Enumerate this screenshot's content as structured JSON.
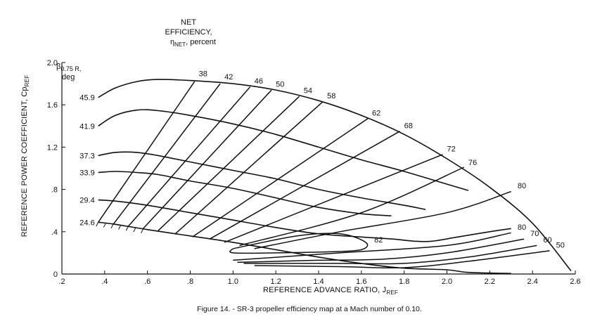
{
  "chart_data": {
    "type": "line",
    "xlabel": "REFERENCE ADVANCE RATIO, J",
    "xlabel_sub": "REF",
    "ylabel": "REFERENCE POWER COEFFICIENT, Cp",
    "ylabel_sub": "REF",
    "xlim": [
      0.2,
      2.6
    ],
    "ylim": [
      0,
      2.0
    ],
    "x_ticks": [
      {
        "v": 0.2,
        "label": ".2"
      },
      {
        "v": 0.4,
        "label": ".4"
      },
      {
        "v": 0.6,
        "label": ".6"
      },
      {
        "v": 0.8,
        "label": ".8"
      },
      {
        "v": 1.0,
        "label": "1.0"
      },
      {
        "v": 1.2,
        "label": "1.2"
      },
      {
        "v": 1.4,
        "label": "1.4"
      },
      {
        "v": 1.6,
        "label": "1.6"
      },
      {
        "v": 1.8,
        "label": "1.8"
      },
      {
        "v": 2.0,
        "label": "2.0"
      },
      {
        "v": 2.2,
        "label": "2.2"
      },
      {
        "v": 2.4,
        "label": "2.4"
      },
      {
        "v": 2.6,
        "label": "2.6"
      }
    ],
    "y_ticks": [
      {
        "v": 0,
        "label": "0"
      },
      {
        "v": 0.4,
        "label": ".4"
      },
      {
        "v": 0.8,
        "label": ".8"
      },
      {
        "v": 1.2,
        "label": "1.2"
      },
      {
        "v": 1.6,
        "label": "1.6"
      },
      {
        "v": 2.0,
        "label": "2.0"
      }
    ],
    "beta_header": {
      "line1": "β",
      "line1_sub": "0.75 R,",
      "line2": "deg"
    },
    "efficiency_header": {
      "line1": "NET",
      "line2": "EFFICIENCY,",
      "line3": "η",
      "line3_sub": "NET",
      "line3_rest": ", percent"
    },
    "beta_curves": [
      {
        "label": "45.9",
        "points": [
          [
            0.37,
            1.67
          ],
          [
            0.45,
            1.76
          ],
          [
            0.55,
            1.82
          ],
          [
            0.65,
            1.84
          ],
          [
            0.8,
            1.83
          ],
          [
            1.0,
            1.8
          ],
          [
            1.2,
            1.74
          ],
          [
            1.4,
            1.64
          ],
          [
            1.6,
            1.5
          ],
          [
            1.8,
            1.32
          ],
          [
            2.0,
            1.09
          ],
          [
            2.2,
            0.82
          ],
          [
            2.4,
            0.48
          ],
          [
            2.58,
            0.03
          ]
        ]
      },
      {
        "label": "41.9",
        "points": [
          [
            0.37,
            1.4
          ],
          [
            0.45,
            1.5
          ],
          [
            0.55,
            1.55
          ],
          [
            0.65,
            1.545
          ],
          [
            0.8,
            1.5
          ],
          [
            1.0,
            1.42
          ],
          [
            1.2,
            1.32
          ],
          [
            1.4,
            1.2
          ],
          [
            1.6,
            1.08
          ],
          [
            1.8,
            0.97
          ],
          [
            2.0,
            0.85
          ],
          [
            2.1,
            0.79
          ]
        ]
      },
      {
        "label": "37.3",
        "points": [
          [
            0.37,
            1.12
          ],
          [
            0.45,
            1.15
          ],
          [
            0.55,
            1.15
          ],
          [
            0.65,
            1.12
          ],
          [
            0.8,
            1.06
          ],
          [
            1.0,
            0.98
          ],
          [
            1.2,
            0.9
          ],
          [
            1.4,
            0.8
          ],
          [
            1.6,
            0.72
          ],
          [
            1.8,
            0.65
          ],
          [
            1.9,
            0.61
          ]
        ]
      },
      {
        "label": "33.9",
        "points": [
          [
            0.37,
            0.96
          ],
          [
            0.45,
            0.97
          ],
          [
            0.55,
            0.96
          ],
          [
            0.65,
            0.94
          ],
          [
            0.8,
            0.88
          ],
          [
            1.0,
            0.81
          ],
          [
            1.2,
            0.72
          ],
          [
            1.4,
            0.63
          ],
          [
            1.6,
            0.57
          ],
          [
            1.74,
            0.55
          ]
        ]
      },
      {
        "label": "29.4",
        "points": [
          [
            0.37,
            0.7
          ],
          [
            0.45,
            0.69
          ],
          [
            0.6,
            0.65
          ],
          [
            0.8,
            0.58
          ],
          [
            1.0,
            0.51
          ],
          [
            1.2,
            0.44
          ],
          [
            1.4,
            0.38
          ],
          [
            1.6,
            0.35
          ],
          [
            1.75,
            0.33
          ],
          [
            1.85,
            0.31
          ],
          [
            1.93,
            0.31
          ],
          [
            2.05,
            0.35
          ],
          [
            2.2,
            0.4
          ],
          [
            2.3,
            0.43
          ]
        ]
      },
      {
        "label": "24.6",
        "points": [
          [
            0.37,
            0.49
          ],
          [
            0.45,
            0.47
          ],
          [
            0.6,
            0.42
          ],
          [
            0.8,
            0.36
          ],
          [
            1.0,
            0.3
          ],
          [
            1.2,
            0.23
          ],
          [
            1.4,
            0.16
          ],
          [
            1.6,
            0.1
          ],
          [
            1.8,
            0.055
          ],
          [
            2.0,
            0.04
          ],
          [
            2.1,
            0.015
          ],
          [
            2.3,
            0.005
          ]
        ]
      }
    ],
    "efficiency_contours": [
      {
        "label": "38",
        "points": [
          [
            0.37,
            0.49
          ],
          [
            0.82,
            1.82
          ]
        ],
        "label_at": [
          0.84,
          1.87
        ]
      },
      {
        "label": "42",
        "points": [
          [
            0.44,
            0.47
          ],
          [
            0.94,
            1.8
          ]
        ],
        "label_at": [
          0.96,
          1.84
        ]
      },
      {
        "label": "46",
        "points": [
          [
            0.51,
            0.45
          ],
          [
            1.08,
            1.77
          ]
        ],
        "label_at": [
          1.1,
          1.8
        ]
      },
      {
        "label": "50",
        "points": [
          [
            0.58,
            0.43
          ],
          [
            1.18,
            1.74
          ]
        ],
        "label_at": [
          1.2,
          1.77
        ]
      },
      {
        "label": "54",
        "points": [
          [
            0.65,
            0.41
          ],
          [
            1.31,
            1.68
          ]
        ],
        "label_at": [
          1.33,
          1.71
        ]
      },
      {
        "label": "58",
        "points": [
          [
            0.73,
            0.38
          ],
          [
            1.42,
            1.63
          ]
        ],
        "label_at": [
          1.44,
          1.66
        ]
      },
      {
        "label": "62",
        "points": [
          [
            0.81,
            0.35
          ],
          [
            1.63,
            1.47
          ]
        ],
        "label_at": [
          1.65,
          1.5
        ]
      },
      {
        "label": "68",
        "points": [
          [
            0.89,
            0.33
          ],
          [
            1.78,
            1.35
          ]
        ],
        "label_at": [
          1.8,
          1.38
        ]
      },
      {
        "label": "72",
        "points": [
          [
            0.96,
            0.3
          ],
          [
            1.98,
            1.13
          ]
        ],
        "label_at": [
          2.0,
          1.16
        ]
      },
      {
        "label": "76",
        "points": [
          [
            1.03,
            0.27
          ],
          [
            1.6,
            0.58
          ],
          [
            2.08,
            1.01
          ]
        ],
        "label_at": [
          2.1,
          1.03
        ]
      },
      {
        "label": "80",
        "points": [
          [
            1.1,
            0.24
          ],
          [
            1.5,
            0.4
          ],
          [
            2.0,
            0.58
          ],
          [
            2.3,
            0.78
          ]
        ],
        "label_at": [
          2.33,
          0.81
        ]
      },
      {
        "label": "80",
        "points": [
          [
            1.0,
            0.13
          ],
          [
            1.5,
            0.2
          ],
          [
            2.0,
            0.27
          ],
          [
            2.3,
            0.39
          ]
        ],
        "label_at": [
          2.33,
          0.42
        ]
      },
      {
        "label": "70",
        "points": [
          [
            1.02,
            0.11
          ],
          [
            1.4,
            0.13
          ],
          [
            1.7,
            0.14
          ],
          [
            2.0,
            0.2
          ],
          [
            2.36,
            0.33
          ]
        ],
        "label_at": [
          2.39,
          0.36
        ]
      },
      {
        "label": "60",
        "points": [
          [
            1.05,
            0.1
          ],
          [
            1.5,
            0.1
          ],
          [
            1.8,
            0.1
          ],
          [
            2.1,
            0.16
          ],
          [
            2.42,
            0.27
          ]
        ],
        "label_at": [
          2.45,
          0.3
        ]
      },
      {
        "label": "50",
        "points": [
          [
            1.1,
            0.08
          ],
          [
            1.5,
            0.07
          ],
          [
            1.8,
            0.06
          ],
          [
            2.1,
            0.12
          ],
          [
            2.48,
            0.22
          ]
        ],
        "label_at": [
          2.51,
          0.25
        ]
      }
    ],
    "efficiency_loop": {
      "label": "82",
      "points": [
        [
          1.0,
          0.24
        ],
        [
          1.3,
          0.36
        ],
        [
          1.5,
          0.38
        ],
        [
          1.62,
          0.3
        ],
        [
          1.6,
          0.23
        ],
        [
          1.45,
          0.21
        ],
        [
          1.2,
          0.2
        ],
        [
          1.0,
          0.2
        ]
      ],
      "label_at": [
        1.66,
        0.3
      ]
    },
    "tick_marks_start": [
      0.37,
      0.6
    ],
    "grid": false
  },
  "caption": "Figure 14. - SR-3 propeller efficiency map at a Mach number of 0.10."
}
